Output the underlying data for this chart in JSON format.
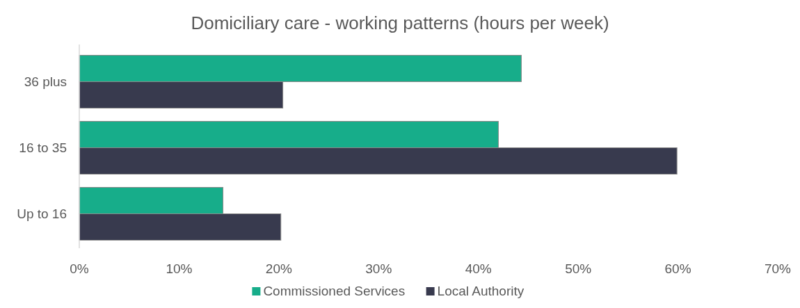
{
  "chart_data": {
    "type": "bar",
    "orientation": "horizontal",
    "title": "Domiciliary care - working patterns (hours per week)",
    "categories": [
      "36 plus",
      "16 to 35",
      "Up to 16"
    ],
    "series": [
      {
        "name": "Commissioned Services",
        "color": "#17ad8a",
        "values": [
          44.3,
          42.0,
          14.4
        ]
      },
      {
        "name": "Local Authority",
        "color": "#383a4e",
        "values": [
          20.4,
          59.9,
          20.2
        ]
      }
    ],
    "xlim": [
      0,
      70
    ],
    "xticks": [
      {
        "value": 0,
        "label": "0%"
      },
      {
        "value": 10,
        "label": "10%"
      },
      {
        "value": 20,
        "label": "20%"
      },
      {
        "value": 30,
        "label": "30%"
      },
      {
        "value": 40,
        "label": "40%"
      },
      {
        "value": 50,
        "label": "50%"
      },
      {
        "value": 60,
        "label": "60%"
      },
      {
        "value": 70,
        "label": "70%"
      }
    ],
    "grid": false,
    "legend": "bottom"
  }
}
